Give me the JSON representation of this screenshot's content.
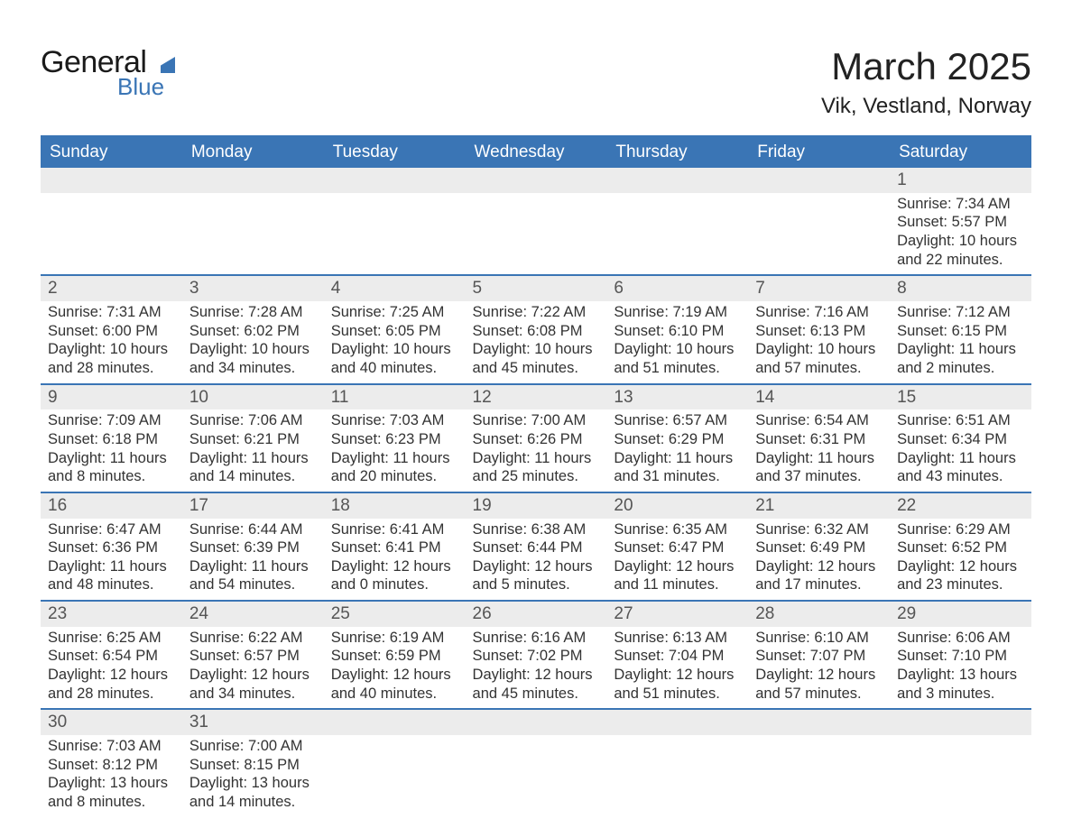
{
  "logo": {
    "general": "General",
    "blue": "Blue",
    "flag_color": "#3a75b5"
  },
  "title": "March 2025",
  "location": "Vik, Vestland, Norway",
  "colors": {
    "header_bg": "#3a75b5",
    "header_text": "#ffffff",
    "daynum_bg": "#ececec",
    "row_divider": "#3a75b5",
    "body_text": "#333333",
    "daynum_text": "#555555"
  },
  "day_headers": [
    "Sunday",
    "Monday",
    "Tuesday",
    "Wednesday",
    "Thursday",
    "Friday",
    "Saturday"
  ],
  "weeks": [
    {
      "nums": [
        "",
        "",
        "",
        "",
        "",
        "",
        "1"
      ],
      "cells": [
        {},
        {},
        {},
        {},
        {},
        {},
        {
          "sunrise": "Sunrise: 7:34 AM",
          "sunset": "Sunset: 5:57 PM",
          "dl1": "Daylight: 10 hours",
          "dl2": "and 22 minutes."
        }
      ]
    },
    {
      "nums": [
        "2",
        "3",
        "4",
        "5",
        "6",
        "7",
        "8"
      ],
      "cells": [
        {
          "sunrise": "Sunrise: 7:31 AM",
          "sunset": "Sunset: 6:00 PM",
          "dl1": "Daylight: 10 hours",
          "dl2": "and 28 minutes."
        },
        {
          "sunrise": "Sunrise: 7:28 AM",
          "sunset": "Sunset: 6:02 PM",
          "dl1": "Daylight: 10 hours",
          "dl2": "and 34 minutes."
        },
        {
          "sunrise": "Sunrise: 7:25 AM",
          "sunset": "Sunset: 6:05 PM",
          "dl1": "Daylight: 10 hours",
          "dl2": "and 40 minutes."
        },
        {
          "sunrise": "Sunrise: 7:22 AM",
          "sunset": "Sunset: 6:08 PM",
          "dl1": "Daylight: 10 hours",
          "dl2": "and 45 minutes."
        },
        {
          "sunrise": "Sunrise: 7:19 AM",
          "sunset": "Sunset: 6:10 PM",
          "dl1": "Daylight: 10 hours",
          "dl2": "and 51 minutes."
        },
        {
          "sunrise": "Sunrise: 7:16 AM",
          "sunset": "Sunset: 6:13 PM",
          "dl1": "Daylight: 10 hours",
          "dl2": "and 57 minutes."
        },
        {
          "sunrise": "Sunrise: 7:12 AM",
          "sunset": "Sunset: 6:15 PM",
          "dl1": "Daylight: 11 hours",
          "dl2": "and 2 minutes."
        }
      ]
    },
    {
      "nums": [
        "9",
        "10",
        "11",
        "12",
        "13",
        "14",
        "15"
      ],
      "cells": [
        {
          "sunrise": "Sunrise: 7:09 AM",
          "sunset": "Sunset: 6:18 PM",
          "dl1": "Daylight: 11 hours",
          "dl2": "and 8 minutes."
        },
        {
          "sunrise": "Sunrise: 7:06 AM",
          "sunset": "Sunset: 6:21 PM",
          "dl1": "Daylight: 11 hours",
          "dl2": "and 14 minutes."
        },
        {
          "sunrise": "Sunrise: 7:03 AM",
          "sunset": "Sunset: 6:23 PM",
          "dl1": "Daylight: 11 hours",
          "dl2": "and 20 minutes."
        },
        {
          "sunrise": "Sunrise: 7:00 AM",
          "sunset": "Sunset: 6:26 PM",
          "dl1": "Daylight: 11 hours",
          "dl2": "and 25 minutes."
        },
        {
          "sunrise": "Sunrise: 6:57 AM",
          "sunset": "Sunset: 6:29 PM",
          "dl1": "Daylight: 11 hours",
          "dl2": "and 31 minutes."
        },
        {
          "sunrise": "Sunrise: 6:54 AM",
          "sunset": "Sunset: 6:31 PM",
          "dl1": "Daylight: 11 hours",
          "dl2": "and 37 minutes."
        },
        {
          "sunrise": "Sunrise: 6:51 AM",
          "sunset": "Sunset: 6:34 PM",
          "dl1": "Daylight: 11 hours",
          "dl2": "and 43 minutes."
        }
      ]
    },
    {
      "nums": [
        "16",
        "17",
        "18",
        "19",
        "20",
        "21",
        "22"
      ],
      "cells": [
        {
          "sunrise": "Sunrise: 6:47 AM",
          "sunset": "Sunset: 6:36 PM",
          "dl1": "Daylight: 11 hours",
          "dl2": "and 48 minutes."
        },
        {
          "sunrise": "Sunrise: 6:44 AM",
          "sunset": "Sunset: 6:39 PM",
          "dl1": "Daylight: 11 hours",
          "dl2": "and 54 minutes."
        },
        {
          "sunrise": "Sunrise: 6:41 AM",
          "sunset": "Sunset: 6:41 PM",
          "dl1": "Daylight: 12 hours",
          "dl2": "and 0 minutes."
        },
        {
          "sunrise": "Sunrise: 6:38 AM",
          "sunset": "Sunset: 6:44 PM",
          "dl1": "Daylight: 12 hours",
          "dl2": "and 5 minutes."
        },
        {
          "sunrise": "Sunrise: 6:35 AM",
          "sunset": "Sunset: 6:47 PM",
          "dl1": "Daylight: 12 hours",
          "dl2": "and 11 minutes."
        },
        {
          "sunrise": "Sunrise: 6:32 AM",
          "sunset": "Sunset: 6:49 PM",
          "dl1": "Daylight: 12 hours",
          "dl2": "and 17 minutes."
        },
        {
          "sunrise": "Sunrise: 6:29 AM",
          "sunset": "Sunset: 6:52 PM",
          "dl1": "Daylight: 12 hours",
          "dl2": "and 23 minutes."
        }
      ]
    },
    {
      "nums": [
        "23",
        "24",
        "25",
        "26",
        "27",
        "28",
        "29"
      ],
      "cells": [
        {
          "sunrise": "Sunrise: 6:25 AM",
          "sunset": "Sunset: 6:54 PM",
          "dl1": "Daylight: 12 hours",
          "dl2": "and 28 minutes."
        },
        {
          "sunrise": "Sunrise: 6:22 AM",
          "sunset": "Sunset: 6:57 PM",
          "dl1": "Daylight: 12 hours",
          "dl2": "and 34 minutes."
        },
        {
          "sunrise": "Sunrise: 6:19 AM",
          "sunset": "Sunset: 6:59 PM",
          "dl1": "Daylight: 12 hours",
          "dl2": "and 40 minutes."
        },
        {
          "sunrise": "Sunrise: 6:16 AM",
          "sunset": "Sunset: 7:02 PM",
          "dl1": "Daylight: 12 hours",
          "dl2": "and 45 minutes."
        },
        {
          "sunrise": "Sunrise: 6:13 AM",
          "sunset": "Sunset: 7:04 PM",
          "dl1": "Daylight: 12 hours",
          "dl2": "and 51 minutes."
        },
        {
          "sunrise": "Sunrise: 6:10 AM",
          "sunset": "Sunset: 7:07 PM",
          "dl1": "Daylight: 12 hours",
          "dl2": "and 57 minutes."
        },
        {
          "sunrise": "Sunrise: 6:06 AM",
          "sunset": "Sunset: 7:10 PM",
          "dl1": "Daylight: 13 hours",
          "dl2": "and 3 minutes."
        }
      ]
    },
    {
      "nums": [
        "30",
        "31",
        "",
        "",
        "",
        "",
        ""
      ],
      "cells": [
        {
          "sunrise": "Sunrise: 7:03 AM",
          "sunset": "Sunset: 8:12 PM",
          "dl1": "Daylight: 13 hours",
          "dl2": "and 8 minutes."
        },
        {
          "sunrise": "Sunrise: 7:00 AM",
          "sunset": "Sunset: 8:15 PM",
          "dl1": "Daylight: 13 hours",
          "dl2": "and 14 minutes."
        },
        {},
        {},
        {},
        {},
        {}
      ]
    }
  ]
}
